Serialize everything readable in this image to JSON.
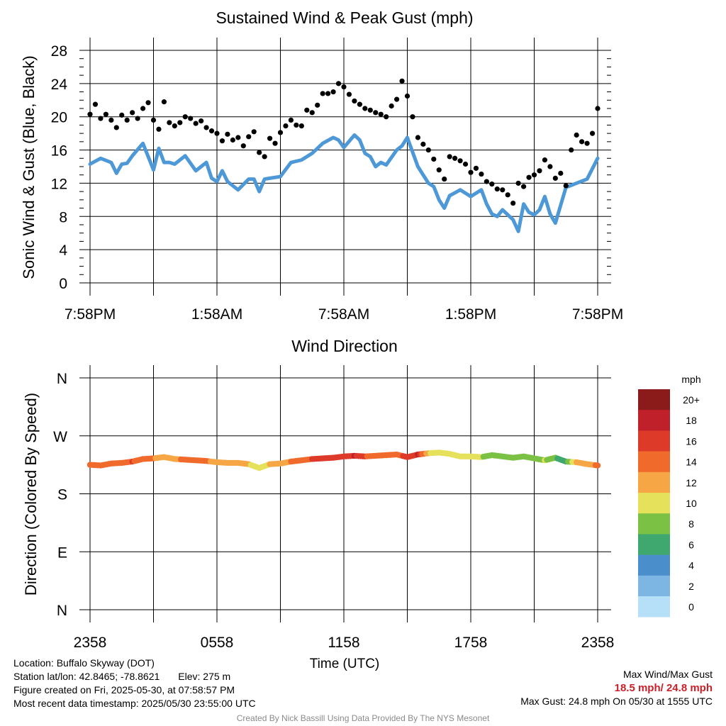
{
  "chart_data": [
    {
      "type": "scatter+line",
      "title": "Sustained Wind & Peak Gust (mph)",
      "ylabel": "Sonic Wind & Gust (Blue, Black)",
      "xlabel": "",
      "ylim": [
        0,
        28
      ],
      "yticks": [
        0,
        4,
        8,
        12,
        16,
        20,
        24,
        28
      ],
      "xtick_labels": [
        "7:58PM",
        "1:58AM",
        "7:58AM",
        "1:58PM",
        "7:58PM"
      ],
      "x_unit": "hours since start (0-24)",
      "series": [
        {
          "name": "Sustained Wind",
          "color": "#4d98d6",
          "style": "line",
          "x": [
            0,
            0.5,
            1,
            1.25,
            1.5,
            1.75,
            2,
            2.5,
            3,
            3.25,
            3.5,
            3.75,
            4,
            4.5,
            5,
            5.5,
            5.75,
            6,
            6.25,
            6.5,
            7,
            7.5,
            7.75,
            8,
            8.25,
            8.5,
            9,
            9.5,
            10,
            10.5,
            11,
            11.5,
            11.75,
            12,
            12.5,
            12.75,
            13,
            13.25,
            13.5,
            13.75,
            14,
            14.5,
            14.75,
            15,
            15.5,
            16,
            16.25,
            16.5,
            16.75,
            17,
            17.5,
            18,
            18.5,
            18.75,
            19,
            19.25,
            19.5,
            20,
            20.25,
            20.5,
            20.75,
            21,
            21.25,
            21.5,
            21.75,
            22,
            22.5,
            23,
            23.5,
            24
          ],
          "values": [
            14.3,
            15,
            14.5,
            13.2,
            14.3,
            14.4,
            15.3,
            16.8,
            13.6,
            16.2,
            14.5,
            14.5,
            14.3,
            15.3,
            13.5,
            14.5,
            12.6,
            12.2,
            13.5,
            12.2,
            11.2,
            12.5,
            12.5,
            11.0,
            12.5,
            12.6,
            12.8,
            14.5,
            14.8,
            15.6,
            16.8,
            17.5,
            17.2,
            16.3,
            17.8,
            17.2,
            15.6,
            15.2,
            14.0,
            14.5,
            14.2,
            16.0,
            16.5,
            17.5,
            14.0,
            12.0,
            11.6,
            10.0,
            9.0,
            10.5,
            11.2,
            10.4,
            11.2,
            9.5,
            8.3,
            8.0,
            8.8,
            7.6,
            6.2,
            9.5,
            8.5,
            8.2,
            8.8,
            10.4,
            8.3,
            7.2,
            11.5,
            12.0,
            12.5,
            15.0
          ]
        },
        {
          "name": "Peak Gust",
          "color": "#000000",
          "style": "dots",
          "x": [
            0,
            0.25,
            0.5,
            0.75,
            1,
            1.25,
            1.5,
            1.75,
            2,
            2.25,
            2.5,
            2.75,
            3,
            3.25,
            3.5,
            3.75,
            4,
            4.25,
            4.5,
            4.75,
            5,
            5.25,
            5.5,
            5.75,
            6,
            6.25,
            6.5,
            6.75,
            7,
            7.25,
            7.5,
            7.75,
            8,
            8.25,
            8.5,
            8.75,
            9,
            9.25,
            9.5,
            9.75,
            10,
            10.25,
            10.5,
            10.75,
            11,
            11.25,
            11.5,
            11.75,
            12,
            12.25,
            12.5,
            12.75,
            13,
            13.25,
            13.5,
            13.75,
            14,
            14.25,
            14.5,
            14.75,
            15,
            15.25,
            15.5,
            15.75,
            16,
            16.25,
            16.5,
            16.75,
            17,
            17.25,
            17.5,
            17.75,
            18,
            18.25,
            18.5,
            18.75,
            19,
            19.25,
            19.5,
            19.75,
            20,
            20.25,
            20.5,
            20.75,
            21,
            21.25,
            21.5,
            21.75,
            22,
            22.25,
            22.5,
            22.75,
            23,
            23.25,
            23.5,
            23.75,
            24
          ],
          "values": [
            20.3,
            21.5,
            19.8,
            20.3,
            19.6,
            18.7,
            20.2,
            19.6,
            20.5,
            19.8,
            21.0,
            21.7,
            19.6,
            18.5,
            21.8,
            19.3,
            18.9,
            19.3,
            20.0,
            19.8,
            19.2,
            19.5,
            18.7,
            18.3,
            18.0,
            17.1,
            17.9,
            17.2,
            17.5,
            16.5,
            17.6,
            18.2,
            15.7,
            15.2,
            17.4,
            16.8,
            18.1,
            18.9,
            19.6,
            19.0,
            18.9,
            20.8,
            20.5,
            21.4,
            22.8,
            22.8,
            23.0,
            24.0,
            23.6,
            22.7,
            21.9,
            21.5,
            21.0,
            20.8,
            20.5,
            20.3,
            20.0,
            21.3,
            22.1,
            24.3,
            22.5,
            20.0,
            17.5,
            16.7,
            16.0,
            14.9,
            13.6,
            12.5,
            15.2,
            15.0,
            14.7,
            14.3,
            13.3,
            13.8,
            13.1,
            12.2,
            11.9,
            11.3,
            11.2,
            10.6,
            9.6,
            12.0,
            11.6,
            12.7,
            13.0,
            13.5,
            14.8,
            14.0,
            12.6,
            13.2,
            11.7,
            16.0,
            17.8,
            17.0,
            16.8,
            18.0,
            21.0
          ]
        }
      ]
    },
    {
      "type": "scatter",
      "title": "Wind Direction",
      "ylabel": "Direction (Colored By Speed)",
      "xlabel": "Time (UTC)",
      "ytick_labels": [
        "N",
        "E",
        "S",
        "W",
        "N"
      ],
      "ytick_degrees": [
        0,
        90,
        180,
        270,
        360
      ],
      "ylim": [
        0,
        360
      ],
      "xtick_labels": [
        "2358",
        "0558",
        "1158",
        "1758",
        "2358"
      ],
      "x_unit": "hours since start (0-24)",
      "x": [
        0,
        0.5,
        1,
        1.5,
        2,
        2.5,
        3,
        3.5,
        4,
        4.5,
        5,
        5.5,
        6,
        6.5,
        7,
        7.5,
        8,
        8.5,
        9,
        9.5,
        10,
        10.5,
        11,
        11.5,
        12,
        12.5,
        13,
        13.5,
        14,
        14.5,
        15,
        15.5,
        16,
        16.5,
        17,
        17.5,
        18,
        18.5,
        19,
        19.5,
        20,
        20.5,
        21,
        21.5,
        22,
        22.5,
        23,
        23.5,
        24
      ],
      "direction_deg": [
        225,
        224,
        227,
        228,
        230,
        234,
        235,
        237,
        234,
        233,
        232,
        231,
        229,
        228,
        228,
        226,
        220,
        226,
        227,
        230,
        232,
        234,
        235,
        236,
        238,
        239,
        238,
        239,
        240,
        241,
        237,
        241,
        243,
        244,
        242,
        238,
        238,
        237,
        240,
        238,
        236,
        238,
        235,
        232,
        236,
        230,
        229,
        226,
        224
      ],
      "speed_mph": [
        15,
        15,
        14,
        15,
        16,
        15,
        14,
        13,
        13,
        15,
        14,
        15,
        12,
        13,
        12,
        12,
        10,
        12,
        13,
        14,
        15,
        16,
        17,
        17,
        17,
        18,
        16,
        15,
        14,
        15,
        17,
        18,
        12,
        11,
        10,
        11,
        10,
        10,
        9,
        8,
        8,
        9,
        8,
        10,
        8,
        7,
        12,
        12,
        15
      ]
    }
  ],
  "colorbar": {
    "unit_label": "mph",
    "labels": [
      "20+",
      "18",
      "16",
      "14",
      "12",
      "10",
      "8",
      "6",
      "4",
      "2",
      "0"
    ],
    "colors": [
      "#8b1a1a",
      "#c0202a",
      "#de3a2a",
      "#f06a2c",
      "#f7a645",
      "#e6e15a",
      "#7bc143",
      "#3fa86e",
      "#4a8ecc",
      "#7db6e3",
      "#b6e0f7"
    ]
  },
  "footer": {
    "location": "Location: Buffalo Skyway (DOT)",
    "latlon": "Station lat/lon: 42.8465; -78.8621",
    "elev": "Elev: 275 m",
    "created": "Figure created on Fri, 2025-05-30, at 07:58:57 PM",
    "recent": "Most recent data timestamp: 2025/05/30 23:55:00 UTC",
    "max_title": "Max Wind/Max Gust",
    "max_values": "18.5 mph/ 24.8 mph",
    "max_gust": "Max Gust: 24.8 mph On 05/30 at 1555 UTC",
    "credit": "Created By Nick Bassill Using Data Provided By The NYS Mesonet"
  }
}
